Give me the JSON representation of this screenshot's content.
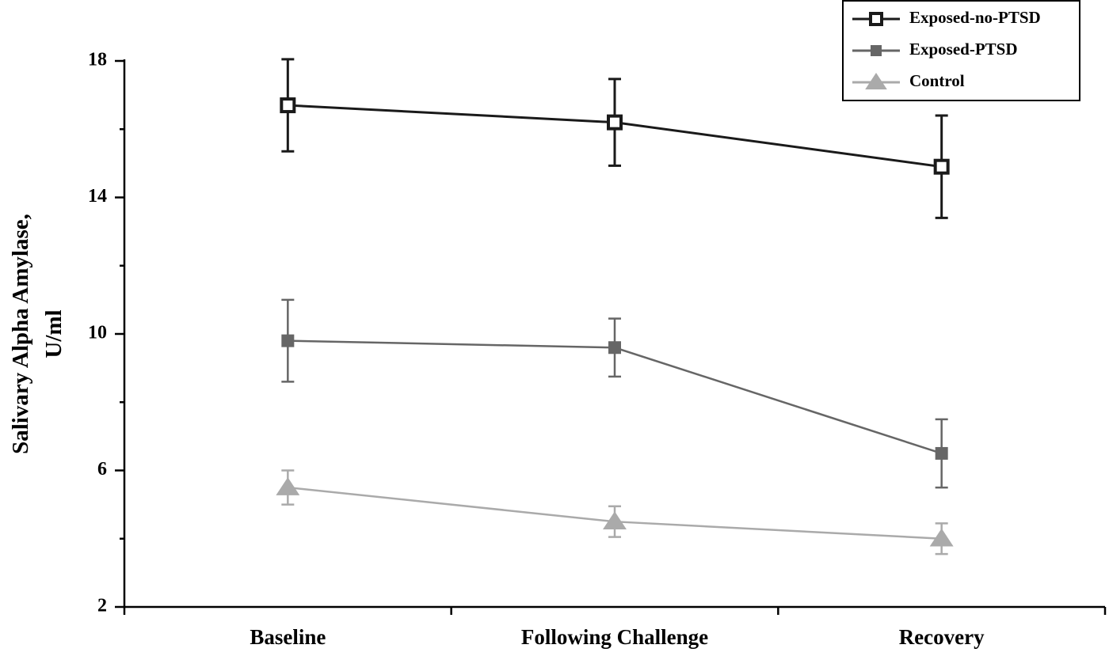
{
  "chart_data": {
    "type": "line",
    "ylabel": [
      "Salivary Alpha Amylase,",
      "U/ml"
    ],
    "categories": [
      "Baseline",
      "Following Challenge",
      "Recovery"
    ],
    "series": [
      {
        "name": "Exposed-no-PTSD",
        "color": "#1a1a1a",
        "marker": "open-square",
        "values": [
          16.7,
          16.2,
          14.9
        ],
        "errors": [
          1.35,
          1.27,
          1.5
        ]
      },
      {
        "name": "Exposed-PTSD",
        "color": "#666666",
        "marker": "square",
        "values": [
          9.8,
          9.6,
          6.5
        ],
        "errors": [
          1.2,
          0.85,
          1.0
        ]
      },
      {
        "name": "Control",
        "color": "#aaaaaa",
        "marker": "triangle",
        "values": [
          5.5,
          4.5,
          4.0
        ],
        "errors": [
          0.5,
          0.45,
          0.45
        ]
      }
    ],
    "ylim": [
      2,
      18
    ],
    "yticks": [
      2,
      6,
      10,
      14,
      18
    ],
    "yminorticks": [
      4,
      8,
      12,
      16
    ],
    "grid": false,
    "legend": "upper right"
  }
}
